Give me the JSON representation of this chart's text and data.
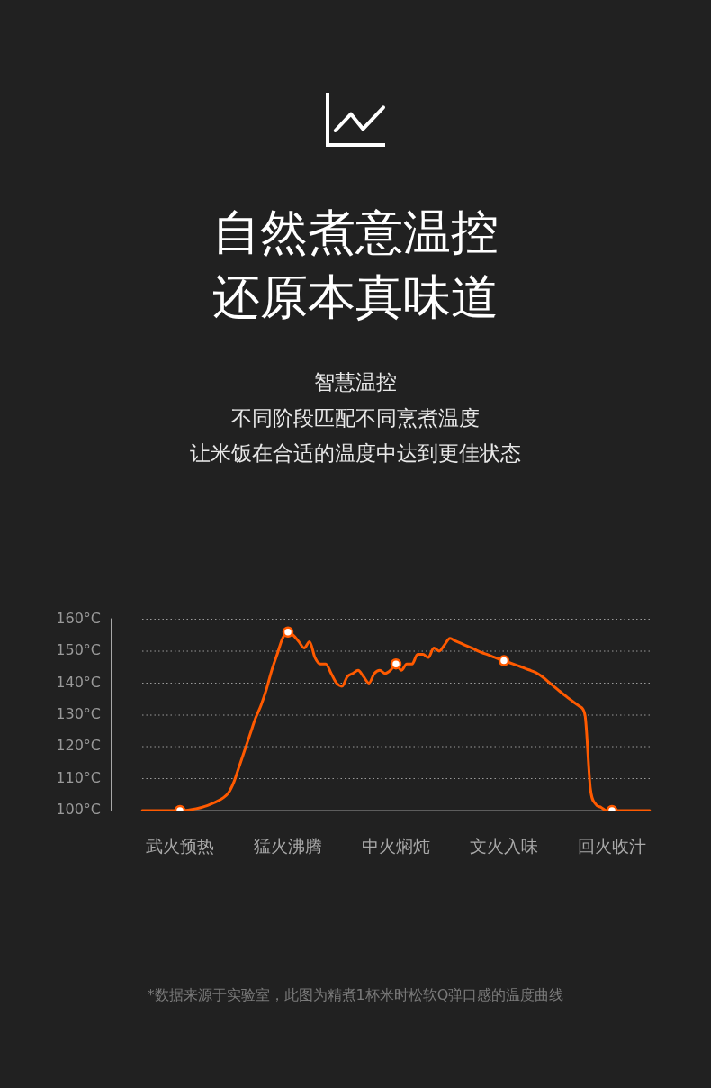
{
  "chart_data": {
    "type": "line",
    "title": "自然煮意温控还原本真味道",
    "subtitle": "智慧温控",
    "annotations": [
      "不同阶段匹配不同烹煮温度",
      "让米饭在合适的温度中达到更佳状态",
      "*数据来源于实验室，此图为精煮1杯米时松软Q弹口感的温度曲线"
    ],
    "categories": [
      null,
      null,
      null,
      null,
      null,
      null,
      null,
      "武火预热",
      null,
      null,
      null,
      null,
      null,
      null,
      null,
      null,
      null,
      null,
      null,
      null,
      null,
      null,
      null,
      null,
      null,
      null,
      null,
      "猛火沸腾",
      null,
      null,
      null,
      null,
      null,
      null,
      null,
      null,
      null,
      null,
      null,
      null,
      null,
      null,
      null,
      null,
      null,
      null,
      null,
      "中火焖炖",
      null,
      null,
      null,
      null,
      null,
      null,
      null,
      null,
      null,
      null,
      null,
      null,
      null,
      null,
      null,
      null,
      null,
      null,
      null,
      "文火入味",
      null,
      null,
      null,
      null,
      null,
      null,
      null,
      null,
      null,
      null,
      null,
      null,
      null,
      null,
      null,
      null,
      null,
      null,
      null,
      "回火收汁",
      null,
      null,
      null,
      null,
      null,
      null,
      null
    ],
    "series": [
      {
        "color": "#ff5a00",
        "marker": "none",
        "values": [
          100,
          100,
          100,
          100,
          100,
          100,
          100,
          100,
          100.1,
          100.3,
          100.6,
          101,
          101.5,
          102.2,
          103,
          104,
          105.6,
          109,
          114,
          119,
          124,
          129,
          133,
          138,
          144,
          149,
          154,
          156,
          155,
          153,
          151,
          153,
          148,
          146,
          146,
          143,
          140,
          139,
          142,
          143,
          144,
          142,
          140,
          143,
          144,
          143,
          144,
          146,
          144,
          146,
          146,
          149,
          149,
          148,
          151,
          150,
          152,
          154,
          153.2,
          152.5,
          151.7,
          151,
          150.2,
          149.5,
          148.9,
          148.2,
          147.6,
          147,
          146.4,
          145.8,
          145.2,
          144.5,
          143.9,
          143.2,
          142.1,
          140.7,
          139.3,
          137.9,
          136.5,
          135.2,
          133.9,
          132.7,
          130,
          107,
          102,
          101,
          100,
          100,
          100,
          100,
          100,
          100,
          100,
          100,
          100
        ]
      },
      {
        "type": "scatter",
        "color": "#ff5a00",
        "marker": "circle",
        "x": [
          "武火预热",
          "猛火沸腾",
          "中火焖炖",
          "文火入味",
          "回火收汁"
        ],
        "values": [
          100,
          156,
          146,
          147,
          100
        ]
      }
    ],
    "ylim": [
      100,
      160
    ],
    "yticks": [
      {
        "value": 100,
        "label": "100°C"
      },
      {
        "value": 110,
        "label": "110°C"
      },
      {
        "value": 120,
        "label": "120°C"
      },
      {
        "value": 130,
        "label": "130°C"
      },
      {
        "value": 140,
        "label": "140°C"
      },
      {
        "value": 150,
        "label": "150°C"
      },
      {
        "value": 160,
        "label": "160°C"
      }
    ],
    "grid": "y",
    "legend": false
  }
}
